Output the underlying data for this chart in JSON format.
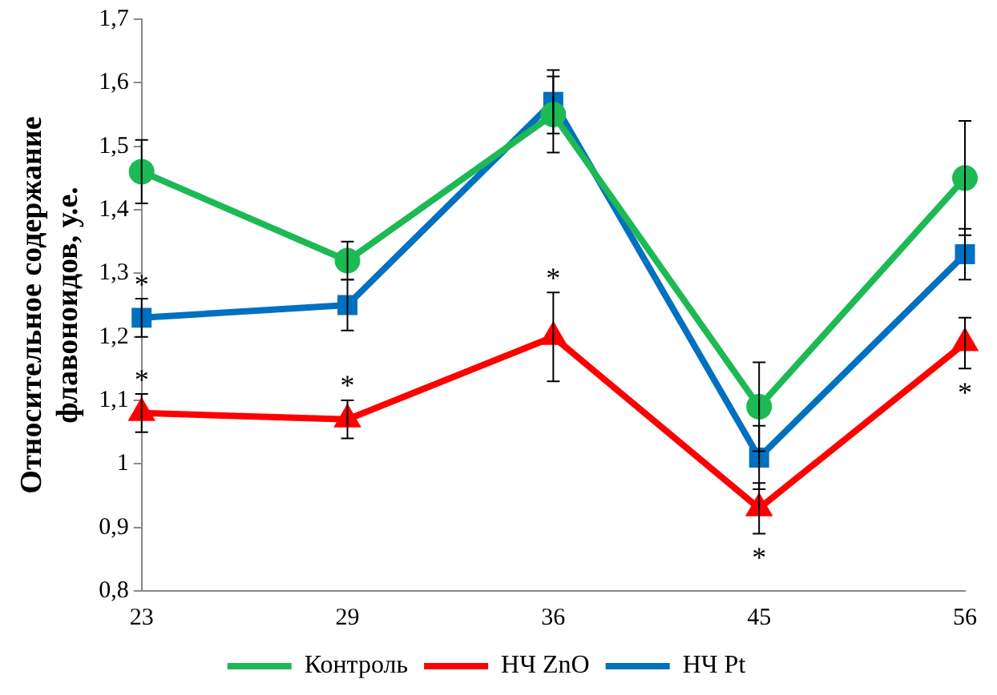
{
  "chart_data": {
    "type": "line",
    "ylabel": "Относительное содержание\nфлавоноидов, у.е.",
    "categories": [
      "23",
      "29",
      "36",
      "45",
      "56"
    ],
    "series": [
      {
        "name": "Контроль",
        "color": "#1db954",
        "marker": "circle",
        "values": [
          1.46,
          1.32,
          1.55,
          1.09,
          1.45
        ],
        "errors": [
          0.05,
          0.03,
          0.06,
          0.07,
          0.09
        ]
      },
      {
        "name": "НЧ ZnO",
        "color": "#ff0000",
        "marker": "triangle",
        "values": [
          1.08,
          1.07,
          1.2,
          0.93,
          1.19
        ],
        "errors": [
          0.03,
          0.03,
          0.07,
          0.04,
          0.04
        ]
      },
      {
        "name": "НЧ Pt",
        "color": "#0070c0",
        "marker": "square",
        "values": [
          1.23,
          1.25,
          1.57,
          1.01,
          1.33
        ],
        "errors": [
          0.03,
          0.04,
          0.05,
          0.05,
          0.04
        ]
      }
    ],
    "ylim": [
      0.8,
      1.7
    ],
    "yticks": [
      {
        "value": 0.8,
        "label": "0,8"
      },
      {
        "value": 0.9,
        "label": "0,9"
      },
      1,
      {
        "value": 1.1,
        "label": "1,1"
      },
      {
        "value": 1.2,
        "label": "1,2"
      },
      {
        "value": 1.3,
        "label": "1,3"
      },
      {
        "value": 1.4,
        "label": "1,4"
      },
      {
        "value": 1.5,
        "label": "1,5"
      },
      {
        "value": 1.6,
        "label": "1,6"
      },
      {
        "value": 1.7,
        "label": "1,7"
      }
    ],
    "grid": false,
    "legend": "bottom",
    "line_style": "solid",
    "annotations": [
      {
        "text": "*",
        "x": "23",
        "y": 1.26
      },
      {
        "text": "*",
        "x": "23",
        "y": 1.11
      },
      {
        "text": "*",
        "x": "29",
        "y": 1.1
      },
      {
        "text": "*",
        "x": "36",
        "y": 1.27
      },
      {
        "text": "*",
        "x": "45",
        "y": 0.89
      },
      {
        "text": "*",
        "x": "56",
        "y": 1.15
      }
    ]
  }
}
